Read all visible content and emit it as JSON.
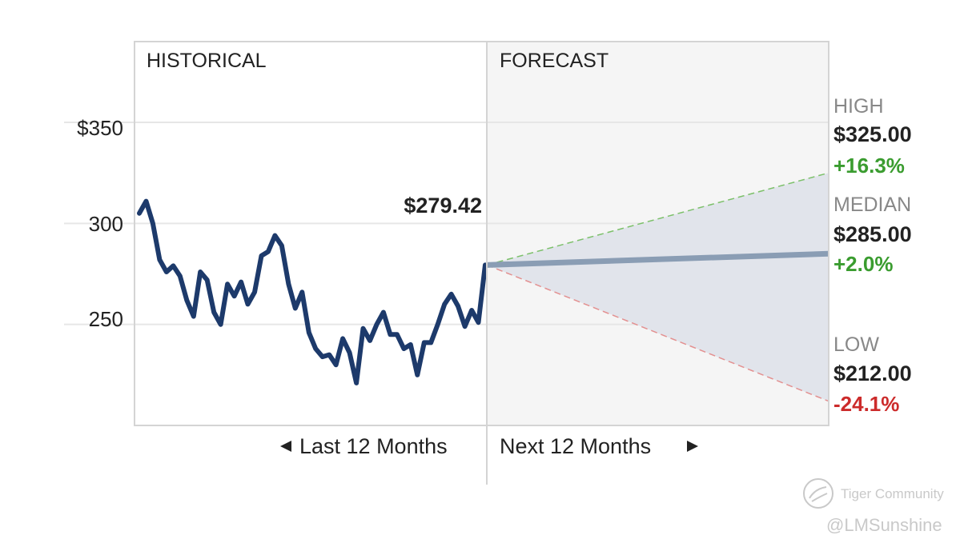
{
  "chart_data": {
    "type": "line",
    "sections": {
      "historical": "HISTORICAL",
      "forecast": "FORECAST"
    },
    "y_ticks": [
      "$350",
      "300",
      "250"
    ],
    "ylim": [
      200,
      390
    ],
    "x_labels": {
      "historical": "Last 12 Months",
      "forecast": "Next 12 Months"
    },
    "historical": {
      "last_price_label": "$279.42",
      "values": [
        305,
        311,
        300,
        282,
        276,
        279,
        274,
        262,
        254,
        276,
        272,
        256,
        250,
        270,
        264,
        271,
        260,
        266,
        284,
        286,
        294,
        289,
        270,
        258,
        266,
        246,
        238,
        234,
        235,
        230,
        243,
        236,
        221,
        248,
        242,
        250,
        256,
        245,
        245,
        238,
        240,
        225,
        241,
        241,
        250,
        260,
        265,
        259,
        249,
        257,
        251,
        279.42
      ]
    },
    "forecast": {
      "high": {
        "label": "HIGH",
        "price": "$325.00",
        "value": 325,
        "change": "+16.3%"
      },
      "median": {
        "label": "MEDIAN",
        "price": "$285.00",
        "value": 285,
        "change": "+2.0%"
      },
      "low": {
        "label": "LOW",
        "price": "$212.00",
        "value": 212,
        "change": "-24.1%"
      }
    },
    "colors": {
      "history_line": "#1d3a6b",
      "median_line": "#8a9db4",
      "high_line": "#7cc06a",
      "low_line": "#e39090",
      "cone_fill": "#e1e4eb",
      "positive": "#3a9c2f",
      "negative": "#cc2b2b"
    }
  },
  "watermark": {
    "community": "Tiger Community",
    "user": "@LMSunshine"
  }
}
